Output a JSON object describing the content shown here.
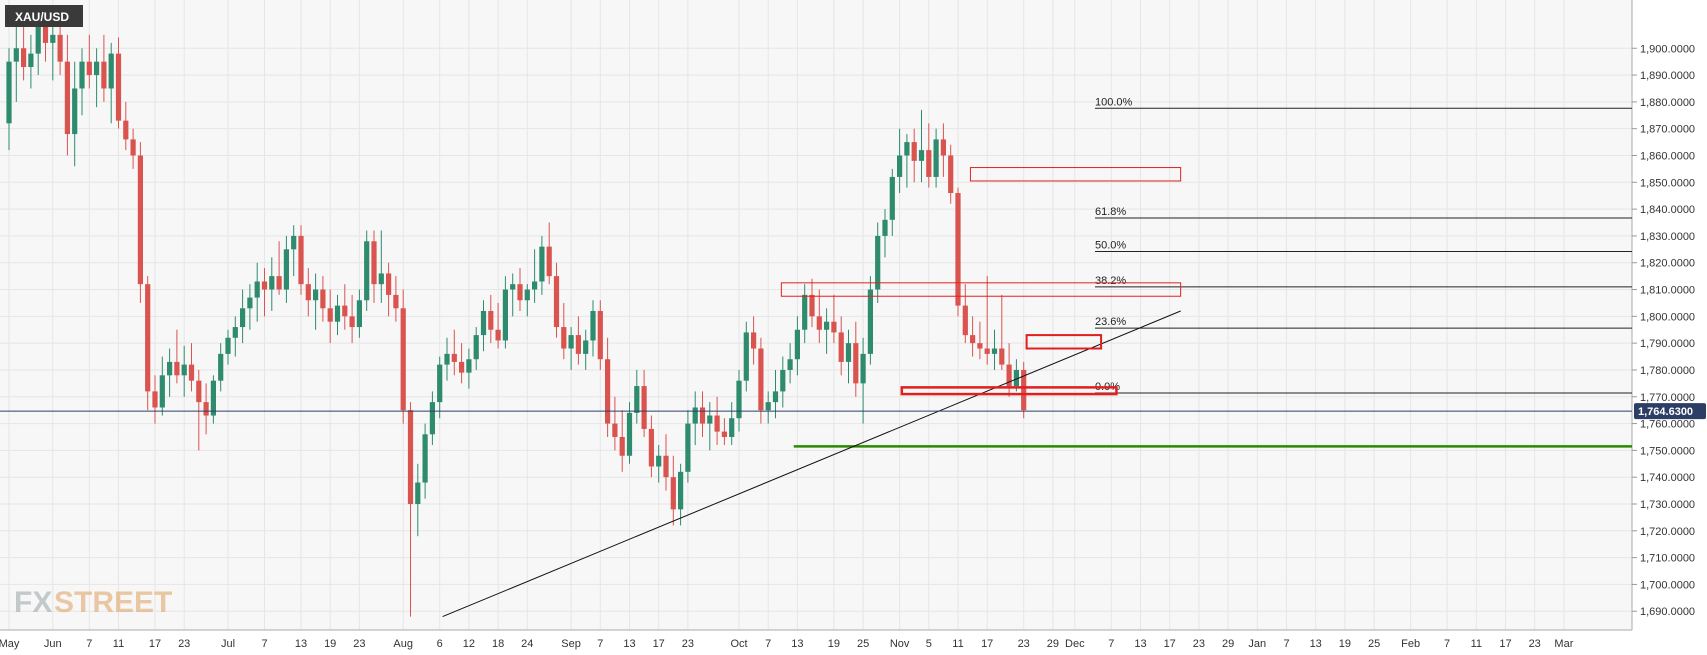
{
  "symbol": "XAU/USD",
  "watermark": {
    "fx": "FX",
    "street": "STREET"
  },
  "colors": {
    "up": "#2e8b6e",
    "down": "#d9534f",
    "grid": "#e6e6e6",
    "support": "#2a8a00",
    "box": "#e02020",
    "badge": "#3a3a3a",
    "price_tag": "#2c3e66",
    "bg": "#f7f7f7"
  },
  "current_price_label": "1,764.6300",
  "fibonacci": [
    {
      "label": "100.0%",
      "price": 1877.6
    },
    {
      "label": "61.8%",
      "price": 1836.7
    },
    {
      "label": "50.0%",
      "price": 1824.2
    },
    {
      "label": "38.2%",
      "price": 1811.0
    },
    {
      "label": "23.6%",
      "price": 1795.6
    },
    {
      "label": "0.0%",
      "price": 1771.4
    }
  ],
  "chart_data": {
    "type": "candlestick",
    "title": "",
    "ylim": [
      1683,
      1918
    ],
    "y_ticks": [
      1690,
      1700,
      1710,
      1720,
      1730,
      1740,
      1750,
      1760,
      1770,
      1780,
      1790,
      1800,
      1810,
      1820,
      1830,
      1840,
      1850,
      1860,
      1870,
      1880,
      1890,
      1900
    ],
    "y_tick_labels": [
      "1,690.0000",
      "1,700.0000",
      "1,710.0000",
      "1,720.0000",
      "1,730.0000",
      "1,740.0000",
      "1,750.0000",
      "1,760.0000",
      "1,770.0000",
      "1,780.0000",
      "1,790.0000",
      "1,800.0000",
      "1,810.0000",
      "1,820.0000",
      "1,830.0000",
      "1,840.0000",
      "1,850.0000",
      "1,860.0000",
      "1,870.0000",
      "1,880.0000",
      "1,890.0000",
      "1,900.0000"
    ],
    "x_ticks": [
      {
        "label": "May",
        "index": 0
      },
      {
        "label": "Jun",
        "index": 6
      },
      {
        "label": "7",
        "index": 11
      },
      {
        "label": "11",
        "index": 15
      },
      {
        "label": "17",
        "index": 20
      },
      {
        "label": "23",
        "index": 24
      },
      {
        "label": "Jul",
        "index": 30
      },
      {
        "label": "7",
        "index": 35
      },
      {
        "label": "13",
        "index": 40
      },
      {
        "label": "19",
        "index": 44
      },
      {
        "label": "23",
        "index": 48
      },
      {
        "label": "Aug",
        "index": 54
      },
      {
        "label": "6",
        "index": 59
      },
      {
        "label": "12",
        "index": 63
      },
      {
        "label": "18",
        "index": 67
      },
      {
        "label": "24",
        "index": 71
      },
      {
        "label": "Sep",
        "index": 77
      },
      {
        "label": "7",
        "index": 81
      },
      {
        "label": "13",
        "index": 85
      },
      {
        "label": "17",
        "index": 89
      },
      {
        "label": "23",
        "index": 93
      },
      {
        "label": "Oct",
        "index": 100
      },
      {
        "label": "7",
        "index": 104
      },
      {
        "label": "13",
        "index": 108
      },
      {
        "label": "19",
        "index": 113
      },
      {
        "label": "25",
        "index": 117
      },
      {
        "label": "Nov",
        "index": 122
      },
      {
        "label": "5",
        "index": 126
      },
      {
        "label": "11",
        "index": 130
      },
      {
        "label": "17",
        "index": 134
      },
      {
        "label": "23",
        "index": 139
      },
      {
        "label": "29",
        "index": 143
      },
      {
        "label": "Dec",
        "index": 146
      },
      {
        "label": "7",
        "index": 151
      },
      {
        "label": "13",
        "index": 155
      },
      {
        "label": "17",
        "index": 159
      },
      {
        "label": "23",
        "index": 163
      },
      {
        "label": "29",
        "index": 167
      },
      {
        "label": "Jan",
        "index": 171
      },
      {
        "label": "7",
        "index": 175
      },
      {
        "label": "13",
        "index": 179
      },
      {
        "label": "19",
        "index": 183
      },
      {
        "label": "25",
        "index": 187
      },
      {
        "label": "Feb",
        "index": 192
      },
      {
        "label": "7",
        "index": 197
      },
      {
        "label": "11",
        "index": 201
      },
      {
        "label": "17",
        "index": 205
      },
      {
        "label": "23",
        "index": 209
      },
      {
        "label": "Mar",
        "index": 213
      }
    ],
    "total_slots": 219,
    "candles": [
      {
        "o": 1872,
        "h": 1900,
        "l": 1862,
        "c": 1895
      },
      {
        "o": 1895,
        "h": 1910,
        "l": 1880,
        "c": 1900
      },
      {
        "o": 1900,
        "h": 1912,
        "l": 1888,
        "c": 1893
      },
      {
        "o": 1893,
        "h": 1905,
        "l": 1885,
        "c": 1898
      },
      {
        "o": 1898,
        "h": 1915,
        "l": 1890,
        "c": 1908
      },
      {
        "o": 1908,
        "h": 1916,
        "l": 1895,
        "c": 1902
      },
      {
        "o": 1902,
        "h": 1912,
        "l": 1888,
        "c": 1905
      },
      {
        "o": 1905,
        "h": 1914,
        "l": 1890,
        "c": 1895
      },
      {
        "o": 1895,
        "h": 1905,
        "l": 1860,
        "c": 1868
      },
      {
        "o": 1868,
        "h": 1895,
        "l": 1856,
        "c": 1885
      },
      {
        "o": 1885,
        "h": 1900,
        "l": 1875,
        "c": 1895
      },
      {
        "o": 1895,
        "h": 1905,
        "l": 1885,
        "c": 1890
      },
      {
        "o": 1890,
        "h": 1900,
        "l": 1878,
        "c": 1895
      },
      {
        "o": 1895,
        "h": 1905,
        "l": 1880,
        "c": 1885
      },
      {
        "o": 1885,
        "h": 1902,
        "l": 1872,
        "c": 1898
      },
      {
        "o": 1898,
        "h": 1904,
        "l": 1870,
        "c": 1873
      },
      {
        "o": 1873,
        "h": 1880,
        "l": 1862,
        "c": 1866
      },
      {
        "o": 1866,
        "h": 1870,
        "l": 1855,
        "c": 1860
      },
      {
        "o": 1860,
        "h": 1865,
        "l": 1805,
        "c": 1812
      },
      {
        "o": 1812,
        "h": 1815,
        "l": 1765,
        "c": 1772
      },
      {
        "o": 1772,
        "h": 1778,
        "l": 1760,
        "c": 1766
      },
      {
        "o": 1766,
        "h": 1785,
        "l": 1763,
        "c": 1778
      },
      {
        "o": 1778,
        "h": 1788,
        "l": 1770,
        "c": 1783
      },
      {
        "o": 1783,
        "h": 1795,
        "l": 1775,
        "c": 1778
      },
      {
        "o": 1778,
        "h": 1789,
        "l": 1770,
        "c": 1782
      },
      {
        "o": 1782,
        "h": 1790,
        "l": 1772,
        "c": 1776
      },
      {
        "o": 1776,
        "h": 1780,
        "l": 1750,
        "c": 1768
      },
      {
        "o": 1768,
        "h": 1775,
        "l": 1756,
        "c": 1763
      },
      {
        "o": 1763,
        "h": 1778,
        "l": 1760,
        "c": 1776
      },
      {
        "o": 1776,
        "h": 1790,
        "l": 1772,
        "c": 1786
      },
      {
        "o": 1786,
        "h": 1795,
        "l": 1782,
        "c": 1792
      },
      {
        "o": 1792,
        "h": 1800,
        "l": 1785,
        "c": 1796
      },
      {
        "o": 1796,
        "h": 1810,
        "l": 1790,
        "c": 1803
      },
      {
        "o": 1803,
        "h": 1812,
        "l": 1795,
        "c": 1807
      },
      {
        "o": 1807,
        "h": 1820,
        "l": 1798,
        "c": 1813
      },
      {
        "o": 1813,
        "h": 1818,
        "l": 1800,
        "c": 1810
      },
      {
        "o": 1810,
        "h": 1822,
        "l": 1802,
        "c": 1815
      },
      {
        "o": 1815,
        "h": 1828,
        "l": 1808,
        "c": 1810
      },
      {
        "o": 1810,
        "h": 1830,
        "l": 1805,
        "c": 1825
      },
      {
        "o": 1825,
        "h": 1834,
        "l": 1815,
        "c": 1830
      },
      {
        "o": 1830,
        "h": 1834,
        "l": 1808,
        "c": 1812
      },
      {
        "o": 1812,
        "h": 1818,
        "l": 1800,
        "c": 1806
      },
      {
        "o": 1806,
        "h": 1816,
        "l": 1795,
        "c": 1810
      },
      {
        "o": 1810,
        "h": 1815,
        "l": 1798,
        "c": 1803
      },
      {
        "o": 1803,
        "h": 1810,
        "l": 1790,
        "c": 1798
      },
      {
        "o": 1798,
        "h": 1808,
        "l": 1793,
        "c": 1804
      },
      {
        "o": 1804,
        "h": 1812,
        "l": 1795,
        "c": 1800
      },
      {
        "o": 1800,
        "h": 1808,
        "l": 1790,
        "c": 1796
      },
      {
        "o": 1796,
        "h": 1810,
        "l": 1792,
        "c": 1806
      },
      {
        "o": 1806,
        "h": 1832,
        "l": 1802,
        "c": 1828
      },
      {
        "o": 1828,
        "h": 1832,
        "l": 1805,
        "c": 1812
      },
      {
        "o": 1812,
        "h": 1832,
        "l": 1805,
        "c": 1816
      },
      {
        "o": 1816,
        "h": 1820,
        "l": 1800,
        "c": 1808
      },
      {
        "o": 1808,
        "h": 1815,
        "l": 1798,
        "c": 1803
      },
      {
        "o": 1803,
        "h": 1810,
        "l": 1760,
        "c": 1765
      },
      {
        "o": 1765,
        "h": 1768,
        "l": 1688,
        "c": 1730
      },
      {
        "o": 1730,
        "h": 1745,
        "l": 1718,
        "c": 1738
      },
      {
        "o": 1738,
        "h": 1760,
        "l": 1732,
        "c": 1756
      },
      {
        "o": 1756,
        "h": 1772,
        "l": 1752,
        "c": 1768
      },
      {
        "o": 1768,
        "h": 1785,
        "l": 1762,
        "c": 1782
      },
      {
        "o": 1782,
        "h": 1792,
        "l": 1776,
        "c": 1786
      },
      {
        "o": 1786,
        "h": 1795,
        "l": 1778,
        "c": 1783
      },
      {
        "o": 1783,
        "h": 1790,
        "l": 1775,
        "c": 1779
      },
      {
        "o": 1779,
        "h": 1788,
        "l": 1773,
        "c": 1784
      },
      {
        "o": 1784,
        "h": 1796,
        "l": 1780,
        "c": 1793
      },
      {
        "o": 1793,
        "h": 1806,
        "l": 1787,
        "c": 1802
      },
      {
        "o": 1802,
        "h": 1808,
        "l": 1790,
        "c": 1795
      },
      {
        "o": 1795,
        "h": 1805,
        "l": 1788,
        "c": 1791
      },
      {
        "o": 1791,
        "h": 1815,
        "l": 1788,
        "c": 1810
      },
      {
        "o": 1810,
        "h": 1816,
        "l": 1800,
        "c": 1812
      },
      {
        "o": 1812,
        "h": 1818,
        "l": 1802,
        "c": 1806
      },
      {
        "o": 1806,
        "h": 1812,
        "l": 1800,
        "c": 1810
      },
      {
        "o": 1810,
        "h": 1825,
        "l": 1805,
        "c": 1813
      },
      {
        "o": 1813,
        "h": 1830,
        "l": 1808,
        "c": 1826
      },
      {
        "o": 1826,
        "h": 1835,
        "l": 1812,
        "c": 1815
      },
      {
        "o": 1815,
        "h": 1820,
        "l": 1792,
        "c": 1796
      },
      {
        "o": 1796,
        "h": 1805,
        "l": 1784,
        "c": 1788
      },
      {
        "o": 1788,
        "h": 1796,
        "l": 1780,
        "c": 1793
      },
      {
        "o": 1793,
        "h": 1800,
        "l": 1782,
        "c": 1786
      },
      {
        "o": 1786,
        "h": 1795,
        "l": 1780,
        "c": 1791
      },
      {
        "o": 1791,
        "h": 1806,
        "l": 1785,
        "c": 1802
      },
      {
        "o": 1802,
        "h": 1806,
        "l": 1780,
        "c": 1784
      },
      {
        "o": 1784,
        "h": 1792,
        "l": 1755,
        "c": 1760
      },
      {
        "o": 1760,
        "h": 1770,
        "l": 1750,
        "c": 1755
      },
      {
        "o": 1755,
        "h": 1765,
        "l": 1742,
        "c": 1748
      },
      {
        "o": 1748,
        "h": 1768,
        "l": 1745,
        "c": 1764
      },
      {
        "o": 1764,
        "h": 1780,
        "l": 1760,
        "c": 1774
      },
      {
        "o": 1774,
        "h": 1780,
        "l": 1755,
        "c": 1758
      },
      {
        "o": 1758,
        "h": 1763,
        "l": 1740,
        "c": 1744
      },
      {
        "o": 1744,
        "h": 1752,
        "l": 1738,
        "c": 1748
      },
      {
        "o": 1748,
        "h": 1756,
        "l": 1735,
        "c": 1740
      },
      {
        "o": 1740,
        "h": 1748,
        "l": 1722,
        "c": 1728
      },
      {
        "o": 1728,
        "h": 1745,
        "l": 1722,
        "c": 1742
      },
      {
        "o": 1742,
        "h": 1765,
        "l": 1738,
        "c": 1760
      },
      {
        "o": 1760,
        "h": 1772,
        "l": 1752,
        "c": 1766
      },
      {
        "o": 1766,
        "h": 1772,
        "l": 1755,
        "c": 1760
      },
      {
        "o": 1760,
        "h": 1768,
        "l": 1750,
        "c": 1763
      },
      {
        "o": 1763,
        "h": 1770,
        "l": 1752,
        "c": 1757
      },
      {
        "o": 1757,
        "h": 1762,
        "l": 1752,
        "c": 1755
      },
      {
        "o": 1755,
        "h": 1768,
        "l": 1752,
        "c": 1762
      },
      {
        "o": 1762,
        "h": 1780,
        "l": 1757,
        "c": 1776
      },
      {
        "o": 1776,
        "h": 1798,
        "l": 1772,
        "c": 1794
      },
      {
        "o": 1794,
        "h": 1800,
        "l": 1782,
        "c": 1788
      },
      {
        "o": 1788,
        "h": 1792,
        "l": 1760,
        "c": 1765
      },
      {
        "o": 1765,
        "h": 1772,
        "l": 1760,
        "c": 1768
      },
      {
        "o": 1768,
        "h": 1780,
        "l": 1762,
        "c": 1772
      },
      {
        "o": 1772,
        "h": 1785,
        "l": 1766,
        "c": 1780
      },
      {
        "o": 1780,
        "h": 1790,
        "l": 1775,
        "c": 1784
      },
      {
        "o": 1784,
        "h": 1800,
        "l": 1778,
        "c": 1795
      },
      {
        "o": 1795,
        "h": 1812,
        "l": 1790,
        "c": 1808
      },
      {
        "o": 1808,
        "h": 1814,
        "l": 1796,
        "c": 1800
      },
      {
        "o": 1800,
        "h": 1810,
        "l": 1790,
        "c": 1795
      },
      {
        "o": 1795,
        "h": 1803,
        "l": 1786,
        "c": 1798
      },
      {
        "o": 1798,
        "h": 1808,
        "l": 1790,
        "c": 1794
      },
      {
        "o": 1794,
        "h": 1800,
        "l": 1778,
        "c": 1783
      },
      {
        "o": 1783,
        "h": 1795,
        "l": 1775,
        "c": 1790
      },
      {
        "o": 1790,
        "h": 1798,
        "l": 1770,
        "c": 1775
      },
      {
        "o": 1775,
        "h": 1792,
        "l": 1760,
        "c": 1786
      },
      {
        "o": 1786,
        "h": 1815,
        "l": 1782,
        "c": 1810
      },
      {
        "o": 1810,
        "h": 1835,
        "l": 1805,
        "c": 1830
      },
      {
        "o": 1830,
        "h": 1840,
        "l": 1822,
        "c": 1836
      },
      {
        "o": 1836,
        "h": 1855,
        "l": 1830,
        "c": 1852
      },
      {
        "o": 1852,
        "h": 1870,
        "l": 1846,
        "c": 1860
      },
      {
        "o": 1860,
        "h": 1868,
        "l": 1848,
        "c": 1865
      },
      {
        "o": 1865,
        "h": 1870,
        "l": 1850,
        "c": 1858
      },
      {
        "o": 1858,
        "h": 1877,
        "l": 1850,
        "c": 1862
      },
      {
        "o": 1862,
        "h": 1872,
        "l": 1848,
        "c": 1852
      },
      {
        "o": 1852,
        "h": 1870,
        "l": 1848,
        "c": 1866
      },
      {
        "o": 1866,
        "h": 1872,
        "l": 1852,
        "c": 1860
      },
      {
        "o": 1860,
        "h": 1864,
        "l": 1842,
        "c": 1846
      },
      {
        "o": 1846,
        "h": 1848,
        "l": 1800,
        "c": 1804
      },
      {
        "o": 1804,
        "h": 1812,
        "l": 1790,
        "c": 1793
      },
      {
        "o": 1793,
        "h": 1800,
        "l": 1785,
        "c": 1790
      },
      {
        "o": 1790,
        "h": 1798,
        "l": 1784,
        "c": 1788
      },
      {
        "o": 1788,
        "h": 1815,
        "l": 1782,
        "c": 1786
      },
      {
        "o": 1786,
        "h": 1795,
        "l": 1780,
        "c": 1788
      },
      {
        "o": 1788,
        "h": 1808,
        "l": 1780,
        "c": 1782
      },
      {
        "o": 1782,
        "h": 1790,
        "l": 1770,
        "c": 1774
      },
      {
        "o": 1774,
        "h": 1784,
        "l": 1772,
        "c": 1780
      },
      {
        "o": 1780,
        "h": 1783,
        "l": 1762,
        "c": 1765
      }
    ]
  }
}
